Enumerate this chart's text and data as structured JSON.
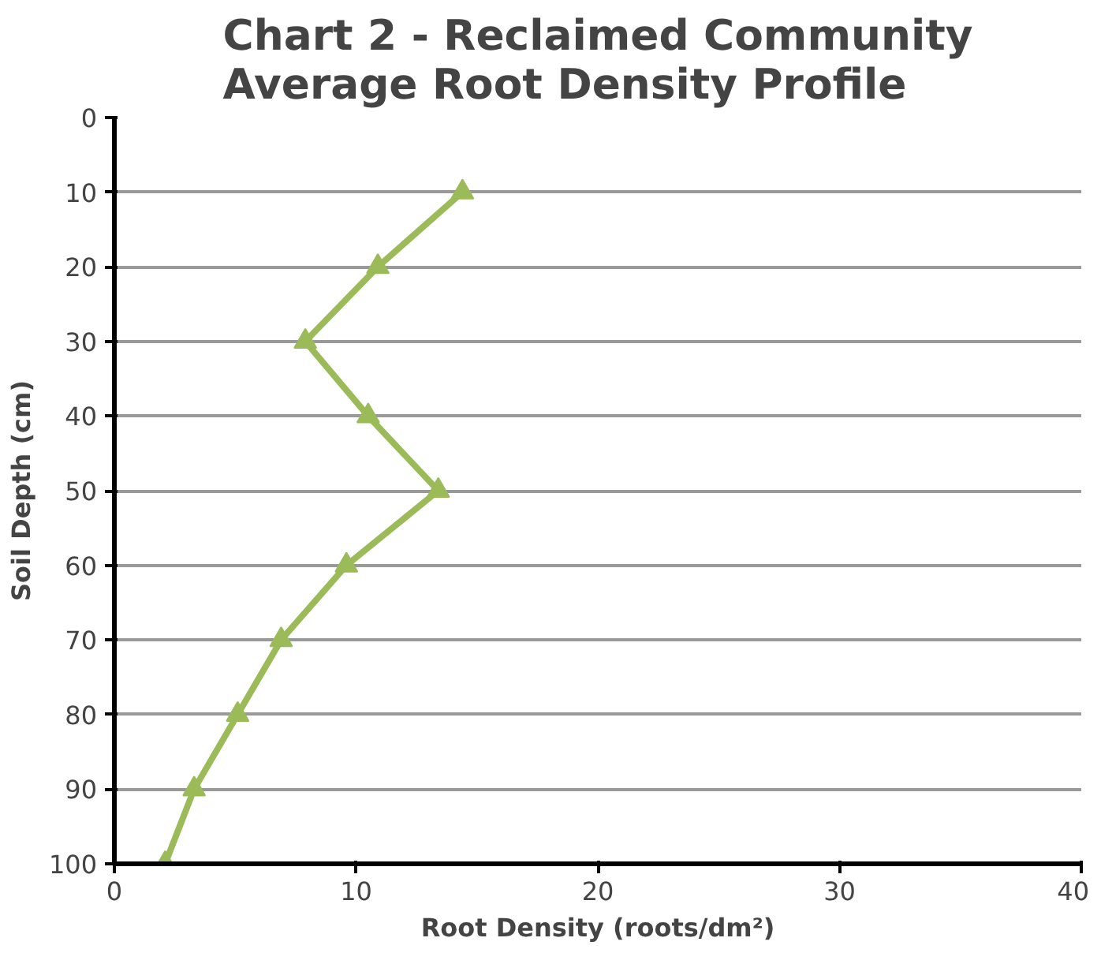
{
  "chart_data": {
    "type": "line",
    "title": "Chart 2 - Reclaimed Community\nAverage Root Density Profile",
    "xlabel": "Root Density (roots/dm²)",
    "ylabel": "Soil Depth (cm)",
    "series": [
      {
        "color": "#9bbb59",
        "x": [
          14.4,
          10.9,
          7.9,
          10.5,
          13.4,
          9.6,
          6.9,
          5.1,
          3.3,
          2.1
        ],
        "values": [
          10,
          20,
          30,
          40,
          50,
          60,
          70,
          80,
          90,
          100
        ]
      }
    ],
    "xlim": [
      0,
      40
    ],
    "xticks": [
      0,
      10,
      20,
      30,
      40
    ],
    "ylim": [
      100,
      0
    ],
    "yticks": [
      0,
      10,
      20,
      30,
      40,
      50,
      60,
      70,
      80,
      90,
      100
    ],
    "grid": "y",
    "marker": "triangle",
    "line_style": "solid"
  }
}
